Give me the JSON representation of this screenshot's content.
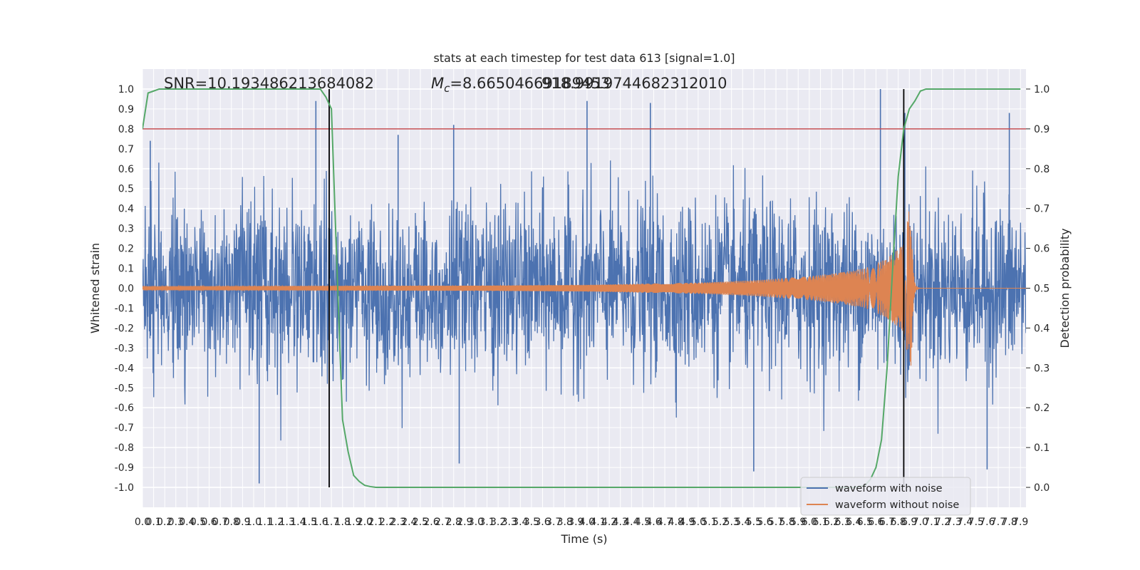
{
  "chart_data": {
    "type": "line",
    "title": "stats at each timestep for test data 613 [signal=1.0]",
    "xlabel": "Time (s)",
    "ylabel": "Whitened strain",
    "y2label": "Detection probability",
    "xlim": [
      0.0,
      7.95
    ],
    "ylim": [
      -1.1,
      1.1
    ],
    "y2lim": [
      -0.05,
      1.05
    ],
    "xticks": [
      0.0,
      0.1,
      0.2,
      0.3,
      0.4,
      0.5,
      0.6,
      0.7,
      0.8,
      0.9,
      1.0,
      1.1,
      1.2,
      1.3,
      1.4,
      1.5,
      1.6,
      1.7,
      1.8,
      1.9,
      2.0,
      2.1,
      2.2,
      2.3,
      2.4,
      2.5,
      2.6,
      2.7,
      2.8,
      2.9,
      3.0,
      3.1,
      3.2,
      3.3,
      3.4,
      3.5,
      3.6,
      3.7,
      3.8,
      3.9,
      4.0,
      4.1,
      4.2,
      4.3,
      4.4,
      4.5,
      4.6,
      4.7,
      4.8,
      4.9,
      5.0,
      5.1,
      5.2,
      5.3,
      5.4,
      5.5,
      5.6,
      5.7,
      5.8,
      5.9,
      6.0,
      6.1,
      6.2,
      6.3,
      6.4,
      6.5,
      6.6,
      6.7,
      6.8,
      6.9,
      7.0,
      7.1,
      7.2,
      7.3,
      7.4,
      7.5,
      7.6,
      7.7,
      7.8,
      7.9
    ],
    "yticks": [
      -1.0,
      -0.9,
      -0.8,
      -0.7,
      -0.6,
      -0.5,
      -0.4,
      -0.3,
      -0.2,
      -0.1,
      0.0,
      0.1,
      0.2,
      0.3,
      0.4,
      0.5,
      0.6,
      0.7,
      0.8,
      0.9,
      1.0
    ],
    "y2ticks": [
      0.0,
      0.1,
      0.2,
      0.3,
      0.4,
      0.5,
      0.6,
      0.7,
      0.8,
      0.9,
      1.0
    ],
    "annotations": {
      "snr": "SNR=10.193486213684082",
      "mc": "=8.66504669189453",
      "mc_symbol": "M",
      "mc_sub": "c",
      "overlap": "918.9919744682312010"
    },
    "threshold": {
      "value": 0.8,
      "axis": "left",
      "color": "#c44e52"
    },
    "vlines": [
      1.68,
      6.85
    ],
    "series": [
      {
        "name": "waveform with noise",
        "color": "#4c72b0",
        "axis": "left",
        "description_stats": {
          "amplitude_std": 0.3,
          "peaks": [
            [
              0.07,
              0.74
            ],
            [
              1.05,
              -0.98
            ],
            [
              1.56,
              0.94
            ],
            [
              2.3,
              0.77
            ],
            [
              2.8,
              0.82
            ],
            [
              2.85,
              -0.88
            ],
            [
              4.0,
              0.94
            ],
            [
              4.57,
              0.93
            ],
            [
              5.5,
              -0.92
            ],
            [
              6.64,
              1.0
            ],
            [
              6.86,
              0.88
            ],
            [
              7.8,
              0.88
            ],
            [
              7.6,
              -0.91
            ]
          ]
        }
      },
      {
        "name": "waveform without noise",
        "color": "#dd8452",
        "axis": "left",
        "envelope": [
          [
            0.0,
            0.01
          ],
          [
            1.0,
            0.011
          ],
          [
            2.0,
            0.012
          ],
          [
            3.0,
            0.013
          ],
          [
            4.0,
            0.017
          ],
          [
            5.0,
            0.028
          ],
          [
            5.5,
            0.04
          ],
          [
            6.0,
            0.06
          ],
          [
            6.3,
            0.08
          ],
          [
            6.5,
            0.1
          ],
          [
            6.7,
            0.15
          ],
          [
            6.85,
            0.22
          ],
          [
            6.9,
            0.4
          ]
        ],
        "ringdown_end": 6.95
      },
      {
        "name": "Detection probability",
        "color": "#55a868",
        "axis": "right",
        "x": [
          0.0,
          0.05,
          0.1,
          0.15,
          0.2,
          0.3,
          0.5,
          1.0,
          1.5,
          1.6,
          1.65,
          1.7,
          1.75,
          1.8,
          1.85,
          1.9,
          1.95,
          2.0,
          2.05,
          2.1,
          2.2,
          2.5,
          3.0,
          3.5,
          4.0,
          4.5,
          5.0,
          5.5,
          6.0,
          6.4,
          6.5,
          6.55,
          6.6,
          6.65,
          6.7,
          6.75,
          6.8,
          6.85,
          6.9,
          6.95,
          7.0,
          7.05,
          7.1,
          7.5,
          7.9
        ],
        "values": [
          0.9,
          0.99,
          0.995,
          1.0,
          1.0,
          1.0,
          1.0,
          1.0,
          1.0,
          1.0,
          0.98,
          0.95,
          0.55,
          0.17,
          0.09,
          0.03,
          0.015,
          0.005,
          0.002,
          0.0,
          0.0,
          0.0,
          0.0,
          0.0,
          0.0,
          0.0,
          0.0,
          0.0,
          0.0,
          0.0,
          0.005,
          0.02,
          0.05,
          0.12,
          0.3,
          0.55,
          0.78,
          0.9,
          0.95,
          0.97,
          0.995,
          1.0,
          1.0,
          1.0,
          1.0
        ]
      }
    ],
    "legend": {
      "placement": "lower-right",
      "entries": [
        "waveform with noise",
        "waveform without noise"
      ]
    },
    "grid": true
  }
}
